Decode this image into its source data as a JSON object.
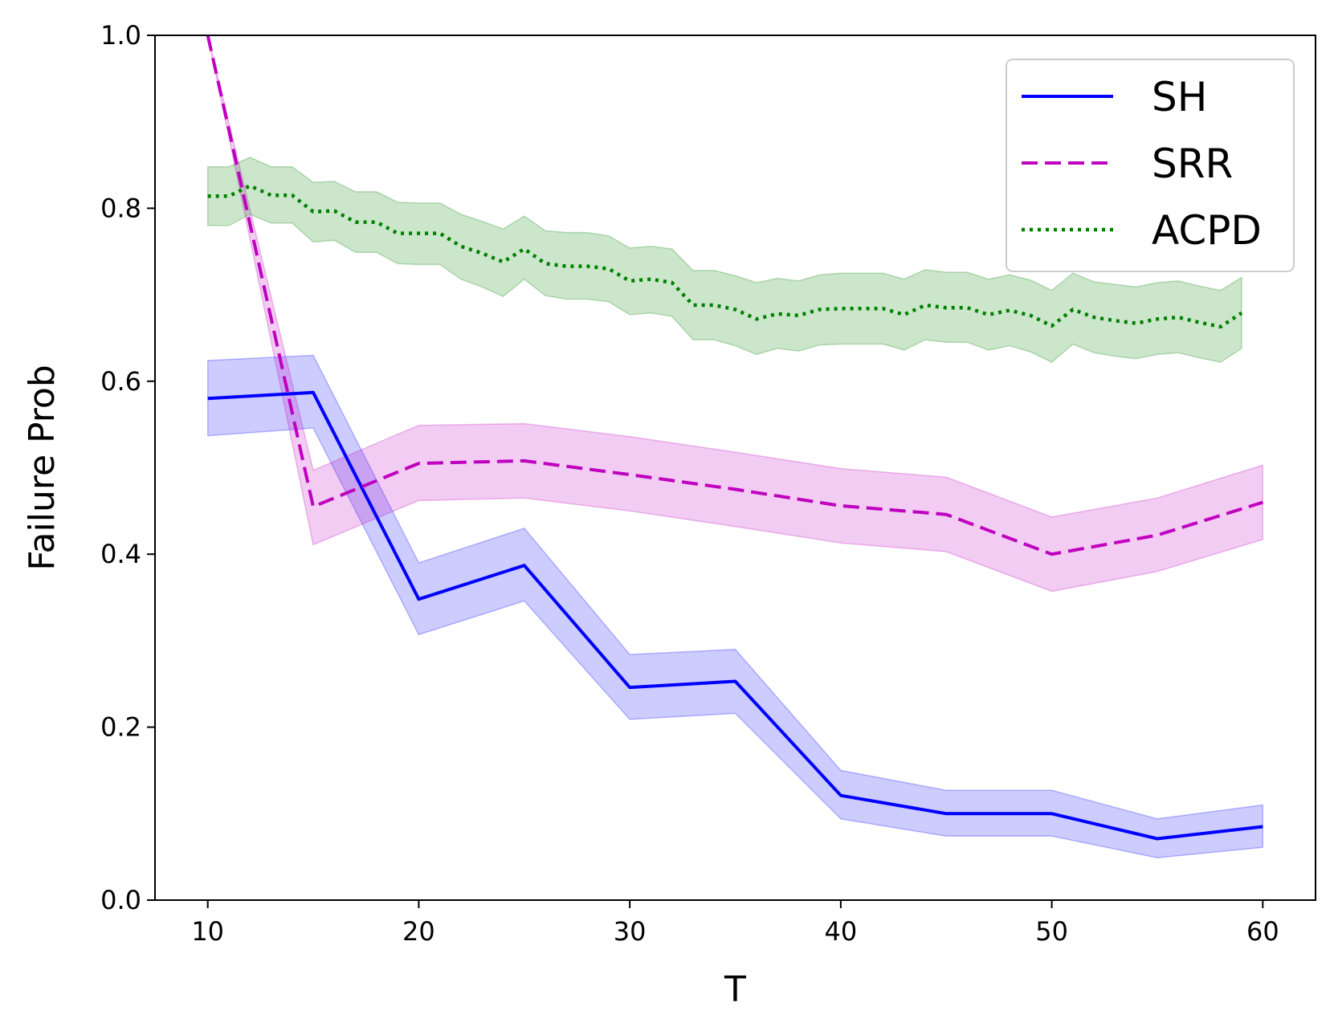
{
  "chart_data": {
    "type": "line",
    "title": "",
    "xlabel": "T",
    "ylabel": "Failure Prob",
    "xlim": [
      7.5,
      62.5
    ],
    "ylim": [
      0.0,
      1.0
    ],
    "xticks": [
      10,
      20,
      30,
      40,
      50,
      60
    ],
    "xtick_labels": [
      "10",
      "20",
      "30",
      "40",
      "50",
      "60"
    ],
    "yticks": [
      0.0,
      0.2,
      0.4,
      0.6,
      0.8,
      1.0
    ],
    "ytick_labels": [
      "0.0",
      "0.2",
      "0.4",
      "0.6",
      "0.8",
      "1.0"
    ],
    "grid": false,
    "legend_position": "top-right",
    "series": [
      {
        "name": "SH",
        "color": "#0000ff",
        "band_color": "#0000ff",
        "linestyle": "solid",
        "x": [
          10,
          15,
          20,
          25,
          30,
          35,
          40,
          45,
          50,
          55,
          60
        ],
        "y": [
          0.58,
          0.587,
          0.348,
          0.387,
          0.246,
          0.253,
          0.121,
          0.1,
          0.1,
          0.071,
          0.085
        ],
        "lower": [
          0.537,
          0.546,
          0.307,
          0.346,
          0.209,
          0.216,
          0.094,
          0.074,
          0.074,
          0.049,
          0.061
        ],
        "upper": [
          0.624,
          0.63,
          0.39,
          0.43,
          0.284,
          0.29,
          0.15,
          0.127,
          0.127,
          0.094,
          0.11
        ]
      },
      {
        "name": "SRR",
        "color": "#bf00bf",
        "band_color": "#bf00bf",
        "linestyle": "dashed",
        "x": [
          10,
          15,
          20,
          25,
          30,
          35,
          40,
          45,
          50,
          55,
          60
        ],
        "y": [
          1.0,
          0.455,
          0.505,
          0.508,
          0.492,
          0.475,
          0.456,
          0.446,
          0.4,
          0.422,
          0.46
        ],
        "lower": [
          1.0,
          0.411,
          0.462,
          0.465,
          0.45,
          0.432,
          0.413,
          0.403,
          0.357,
          0.38,
          0.417
        ],
        "upper": [
          1.0,
          0.497,
          0.549,
          0.551,
          0.536,
          0.518,
          0.499,
          0.489,
          0.443,
          0.465,
          0.503
        ]
      },
      {
        "name": "ACPD",
        "color": "#008000",
        "band_color": "#008000",
        "linestyle": "dotted",
        "x": [
          10,
          11,
          12,
          13,
          14,
          15,
          16,
          17,
          18,
          19,
          20,
          21,
          22,
          23,
          24,
          25,
          26,
          27,
          28,
          29,
          30,
          31,
          32,
          33,
          34,
          35,
          36,
          37,
          38,
          39,
          40,
          41,
          42,
          43,
          44,
          45,
          46,
          47,
          48,
          49,
          50,
          51,
          52,
          53,
          54,
          55,
          56,
          57,
          58,
          59
        ],
        "y": [
          0.814,
          0.814,
          0.826,
          0.815,
          0.815,
          0.796,
          0.797,
          0.784,
          0.784,
          0.771,
          0.771,
          0.771,
          0.756,
          0.748,
          0.738,
          0.753,
          0.736,
          0.733,
          0.733,
          0.73,
          0.716,
          0.718,
          0.714,
          0.688,
          0.688,
          0.683,
          0.672,
          0.678,
          0.676,
          0.683,
          0.684,
          0.684,
          0.684,
          0.677,
          0.688,
          0.685,
          0.685,
          0.677,
          0.682,
          0.676,
          0.664,
          0.683,
          0.674,
          0.67,
          0.667,
          0.672,
          0.674,
          0.668,
          0.663,
          0.679
        ],
        "lower": [
          0.78,
          0.78,
          0.793,
          0.783,
          0.783,
          0.761,
          0.763,
          0.749,
          0.749,
          0.736,
          0.735,
          0.735,
          0.718,
          0.709,
          0.698,
          0.718,
          0.699,
          0.695,
          0.695,
          0.692,
          0.677,
          0.679,
          0.675,
          0.648,
          0.648,
          0.641,
          0.631,
          0.638,
          0.635,
          0.642,
          0.643,
          0.643,
          0.643,
          0.636,
          0.648,
          0.645,
          0.645,
          0.636,
          0.641,
          0.634,
          0.622,
          0.643,
          0.633,
          0.629,
          0.626,
          0.631,
          0.633,
          0.627,
          0.622,
          0.638
        ],
        "upper": [
          0.848,
          0.848,
          0.859,
          0.848,
          0.848,
          0.83,
          0.831,
          0.819,
          0.819,
          0.807,
          0.806,
          0.806,
          0.793,
          0.785,
          0.776,
          0.791,
          0.774,
          0.772,
          0.772,
          0.768,
          0.754,
          0.756,
          0.753,
          0.728,
          0.728,
          0.722,
          0.714,
          0.719,
          0.716,
          0.723,
          0.725,
          0.725,
          0.725,
          0.718,
          0.729,
          0.726,
          0.726,
          0.718,
          0.723,
          0.717,
          0.705,
          0.725,
          0.715,
          0.712,
          0.709,
          0.714,
          0.716,
          0.71,
          0.705,
          0.72
        ]
      }
    ]
  }
}
